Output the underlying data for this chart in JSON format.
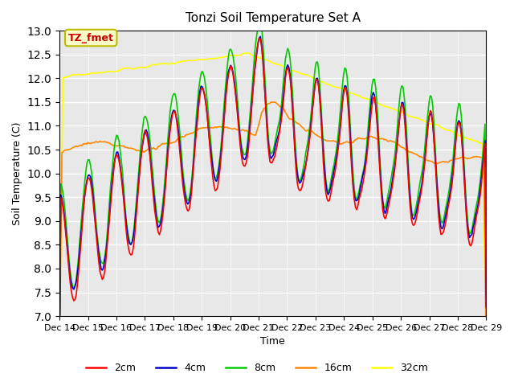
{
  "title": "Tonzi Soil Temperature Set A",
  "xlabel": "Time",
  "ylabel": "Soil Temperature (C)",
  "annotation": "TZ_fmet",
  "annotation_color": "#cc0000",
  "annotation_bg": "#ffffcc",
  "annotation_border": "#bbbb00",
  "ylim": [
    7.0,
    13.0
  ],
  "yticks": [
    7.0,
    7.5,
    8.0,
    8.5,
    9.0,
    9.5,
    10.0,
    10.5,
    11.0,
    11.5,
    12.0,
    12.5,
    13.0
  ],
  "background_color": "#e8e8e8",
  "grid_color": "#ffffff",
  "line_colors": {
    "2cm": "#ff0000",
    "4cm": "#0000cc",
    "8cm": "#00cc00",
    "16cm": "#ff8800",
    "32cm": "#ffff00"
  },
  "x_tick_labels": [
    "Dec 14",
    "Dec 15",
    "Dec 16",
    "Dec 17",
    "Dec 18",
    "Dec 19",
    "Dec 20",
    "Dec 21",
    "Dec 22",
    "Dec 23",
    "Dec 24",
    "Dec 25",
    "Dec 26",
    "Dec 27",
    "Dec 28",
    "Dec 29"
  ],
  "n_points": 360
}
